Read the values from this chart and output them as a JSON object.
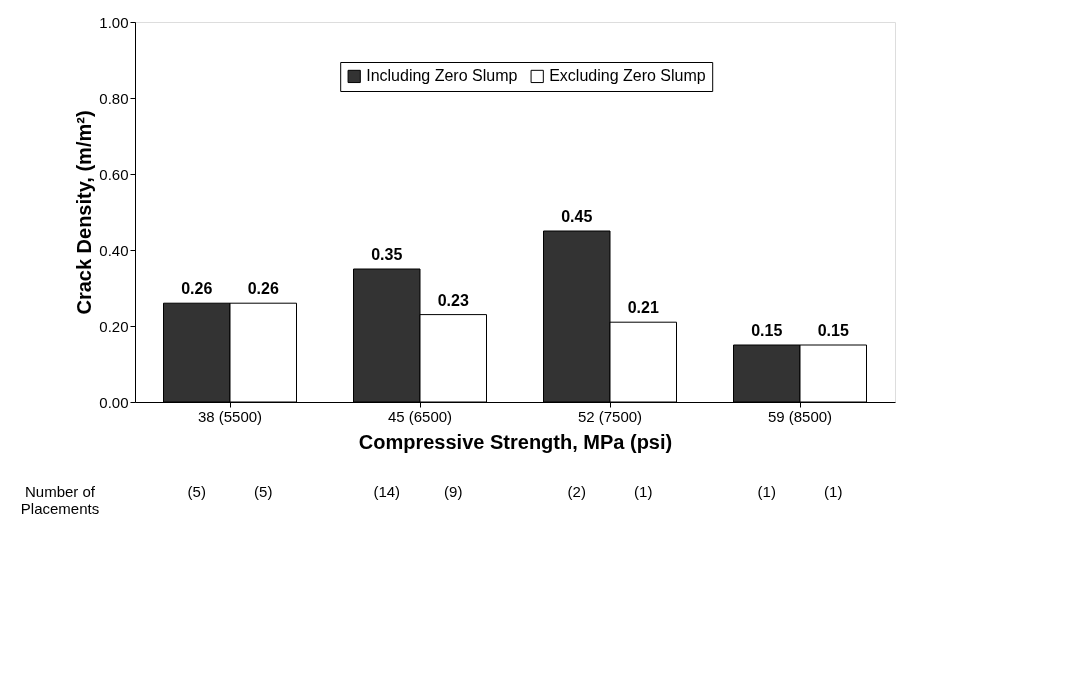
{
  "chart_data": {
    "type": "bar",
    "xlabel": "Compressive Strength, MPa (psi)",
    "ylabel": "Crack Density, (m/m²)",
    "categories": [
      "38 (5500)",
      "45 (6500)",
      "52 (7500)",
      "59 (8500)"
    ],
    "series": [
      {
        "name": "Including Zero Slump",
        "color": "#333333",
        "values": [
          0.26,
          0.35,
          0.45,
          0.15
        ]
      },
      {
        "name": "Excluding Zero Slump",
        "color": "#ffffff",
        "values": [
          0.26,
          0.23,
          0.21,
          0.15
        ]
      }
    ],
    "ylim": [
      0,
      1
    ],
    "yticks": [
      {
        "value": 0,
        "label": "0.00"
      },
      {
        "value": 0.2,
        "label": "0.20"
      },
      {
        "value": 0.4,
        "label": "0.40"
      },
      {
        "value": 0.6,
        "label": "0.60"
      },
      {
        "value": 0.8,
        "label": "0.80"
      },
      {
        "value": 1,
        "label": "1.00"
      }
    ],
    "data_labels": true,
    "grid": false,
    "legend": "top",
    "annotations": [
      "Number of\nPlacements",
      "(5)",
      "(5)",
      "(14)",
      "(9)",
      "(2)",
      "(1)",
      "(1)",
      "(1)"
    ]
  }
}
